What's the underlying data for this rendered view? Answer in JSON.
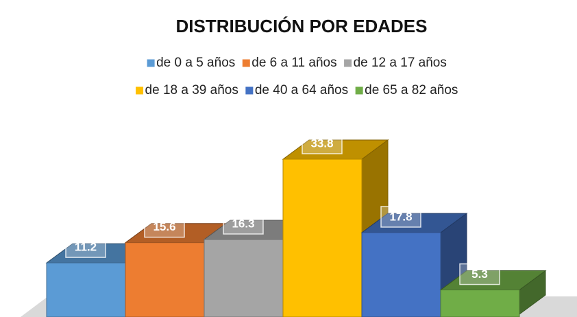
{
  "chart_data": {
    "type": "bar3d",
    "title": "DISTRIBUCIÓN POR EDADES",
    "series": [
      {
        "name": "de 0 a 5 años",
        "color": "#5b9bd5",
        "values": [
          11.2
        ]
      },
      {
        "name": "de 6 a 11 años",
        "color": "#ed7d31",
        "values": [
          15.6
        ]
      },
      {
        "name": "de 12 a 17 años",
        "color": "#a5a5a5",
        "values": [
          16.3
        ]
      },
      {
        "name": "de 18 a 39 años",
        "color": "#ffc000",
        "values": [
          33.8
        ]
      },
      {
        "name": "de 40 a 64 años",
        "color": "#4472c4",
        "values": [
          17.8
        ]
      },
      {
        "name": "de 65 a 82 años",
        "color": "#70ad47",
        "values": [
          5.3
        ]
      }
    ]
  }
}
